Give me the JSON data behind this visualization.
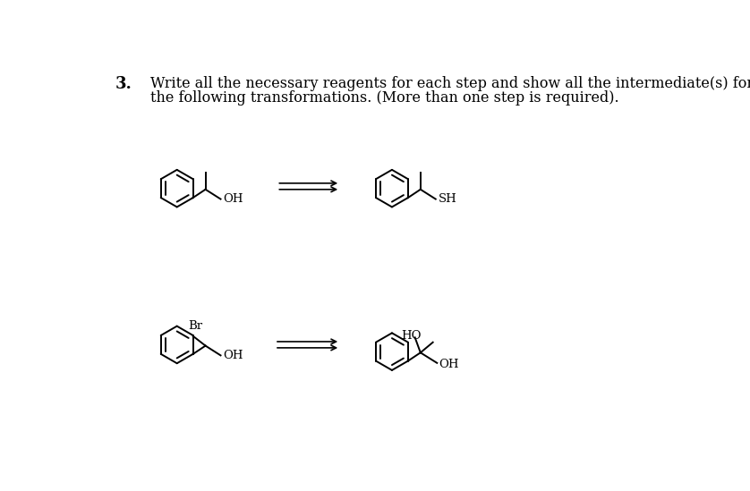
{
  "title_number": "3.",
  "title_text_line1": "Write all the necessary reagents for each step and show all the intermediate(s) for each of",
  "title_text_line2": "the following transformations. (More than one step is required).",
  "background_color": "#ffffff",
  "text_color": "#000000",
  "figsize": [
    8.38,
    5.49
  ],
  "dpi": 100,
  "lw": 1.4,
  "font_size_text": 11.5,
  "font_size_label": 9.5,
  "font_size_num": 13
}
